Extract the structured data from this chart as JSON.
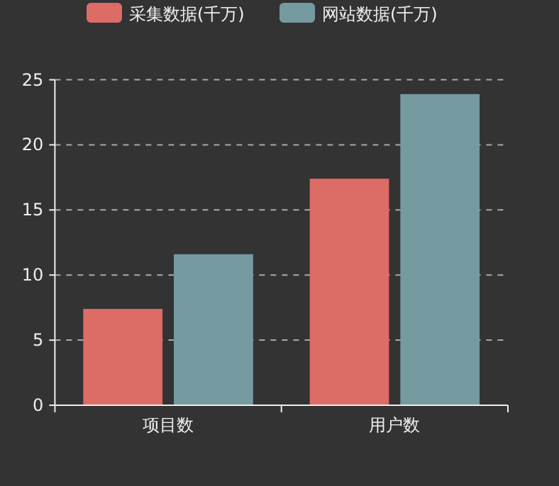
{
  "chart_data": {
    "type": "bar",
    "categories": [
      "项目数",
      "用户数"
    ],
    "series": [
      {
        "name": "采集数据(千万)",
        "color": "#dd6b66",
        "values": [
          7.4,
          17.4
        ]
      },
      {
        "name": "网站数据(千万)",
        "color": "#759aa0",
        "values": [
          11.6,
          23.9
        ]
      }
    ],
    "ylim": [
      0,
      25
    ],
    "yticks": [
      0,
      5,
      10,
      15,
      20,
      25
    ],
    "grid": "y",
    "legend": "top"
  }
}
